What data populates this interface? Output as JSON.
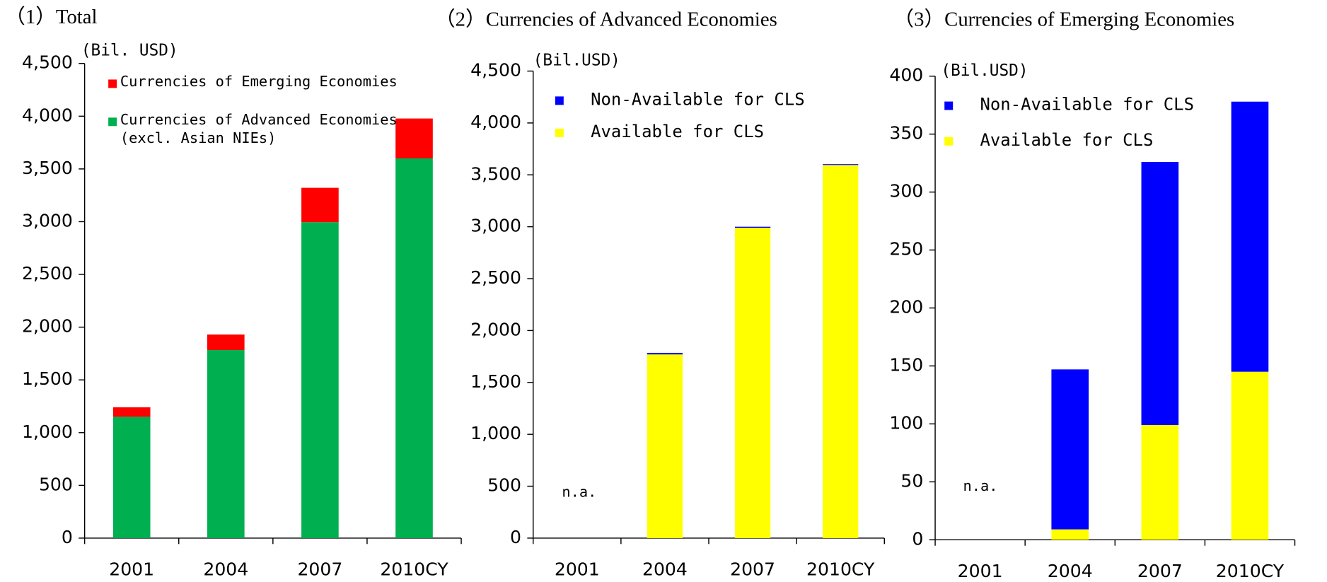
{
  "chart_data": [
    {
      "type": "bar",
      "stacked": true,
      "title": "（1）Total",
      "y_label": "(Bil. USD)",
      "categories": [
        "2001",
        "2004",
        "2007",
        "2010CY"
      ],
      "series": [
        {
          "name": "Currencies of Advanced Economies\n(excl. Asian NIEs)",
          "color": "#00b050",
          "values": [
            1150,
            1783,
            2995,
            3600
          ]
        },
        {
          "name": "Currencies of Emerging Economies",
          "color": "#ff0000",
          "values": [
            90,
            147,
            326,
            378
          ]
        }
      ],
      "ylim": [
        0,
        4500
      ],
      "yticks": [
        0,
        500,
        {
          "value": 1000,
          "label": "1,000"
        },
        {
          "value": 1500,
          "label": "1,500"
        },
        {
          "value": 2000,
          "label": "2,000"
        },
        {
          "value": 2500,
          "label": "2,500"
        },
        {
          "value": 3000,
          "label": "3,000"
        },
        {
          "value": 3500,
          "label": "3,500"
        },
        {
          "value": 4000,
          "label": "4,000"
        },
        {
          "value": 4500,
          "label": "4,500"
        }
      ]
    },
    {
      "type": "bar",
      "stacked": true,
      "title": "（2）Currencies of Advanced Economies",
      "y_label": "(Bil.USD)",
      "categories": [
        "2001",
        "2004",
        "2007",
        "2010CY"
      ],
      "series": [
        {
          "name": "Available for CLS",
          "color": "#ffff00",
          "values": [
            null,
            1770,
            2990,
            3595
          ]
        },
        {
          "name": "Non-Available for CLS",
          "color": "#0000ff",
          "values": [
            null,
            15,
            10,
            8
          ]
        }
      ],
      "annotation": "n.a.",
      "ylim": [
        0,
        4500
      ],
      "yticks": [
        0,
        500,
        {
          "value": 1000,
          "label": "1,000"
        },
        {
          "value": 1500,
          "label": "1,500"
        },
        {
          "value": 2000,
          "label": "2,000"
        },
        {
          "value": 2500,
          "label": "2,500"
        },
        {
          "value": 3000,
          "label": "3,000"
        },
        {
          "value": 3500,
          "label": "3,500"
        },
        {
          "value": 4000,
          "label": "4,000"
        },
        {
          "value": 4500,
          "label": "4,500"
        }
      ]
    },
    {
      "type": "bar",
      "stacked": true,
      "title": "（3）Currencies of  Emerging Economies",
      "y_label": "(Bil.USD)",
      "categories": [
        "2001",
        "2004",
        "2007",
        "2010CY"
      ],
      "series": [
        {
          "name": "Available for CLS",
          "color": "#ffff00",
          "values": [
            null,
            9,
            99,
            145
          ]
        },
        {
          "name": "Non-Available for CLS",
          "color": "#0000ff",
          "values": [
            null,
            138,
            227,
            233
          ]
        }
      ],
      "annotation": "n.a.",
      "ylim": [
        0,
        400
      ],
      "yticks": [
        0,
        50,
        100,
        150,
        200,
        250,
        300,
        350,
        400
      ]
    }
  ]
}
